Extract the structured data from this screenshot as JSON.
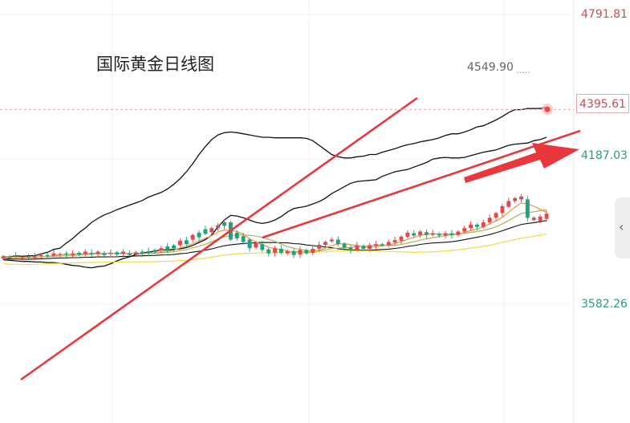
{
  "chart_data": {
    "type": "candlestick",
    "title": "国际黄金日线图",
    "y_axis_labels": [
      {
        "value": 4791.81,
        "text": "4791.81",
        "color": "#d04a52"
      },
      {
        "value": 4187.03,
        "text": "4187.03",
        "color": "#2a9d74"
      },
      {
        "value": 3582.26,
        "text": "3582.26",
        "color": "#2a9d74"
      }
    ],
    "current_price": {
      "value": 4395.61,
      "text": "4395.61"
    },
    "high_marker": {
      "value": 4549.9,
      "text": "4549.90"
    },
    "ylim": [
      3300,
      4830
    ],
    "colors": {
      "up": "#e04a4a",
      "down": "#1fa37a",
      "ma_fast": "#f0913a",
      "ma_mid": "#a9b457",
      "ma_slow": "#f2d64b",
      "band": "#111111",
      "trendline": "#e8383d"
    },
    "candle_shape": [
      [
        -0.03,
        0.01
      ],
      [
        -0.01,
        -0.02
      ],
      [
        0.02,
        0.0
      ],
      [
        -0.02,
        -0.02
      ],
      [
        0.01,
        -0.01
      ],
      [
        -0.02,
        0.01
      ],
      [
        0.02,
        0.03
      ],
      [
        0.03,
        0.02
      ],
      [
        0.02,
        0.06
      ],
      [
        0.04,
        0.05
      ],
      [
        0.06,
        0.04
      ],
      [
        0.03,
        0.06
      ],
      [
        0.07,
        0.04
      ],
      [
        0.05,
        0.09
      ],
      [
        0.07,
        0.05
      ],
      [
        0.05,
        0.09
      ],
      [
        0.06,
        0.03
      ],
      [
        0.05,
        0.07
      ],
      [
        0.08,
        0.04
      ],
      [
        0.05,
        0.09
      ],
      [
        0.06,
        0.03
      ],
      [
        0.04,
        0.08
      ],
      [
        0.09,
        0.05
      ],
      [
        0.1,
        0.07
      ],
      [
        0.12,
        0.08
      ],
      [
        0.11,
        0.15
      ],
      [
        0.18,
        0.12
      ],
      [
        0.2,
        0.15
      ],
      [
        0.2,
        0.28
      ],
      [
        0.29,
        0.22
      ],
      [
        0.3,
        0.38
      ],
      [
        0.42,
        0.34
      ],
      [
        0.48,
        0.4
      ],
      [
        0.43,
        0.5
      ],
      [
        0.5,
        0.55
      ],
      [
        0.6,
        0.54
      ],
      [
        0.6,
        0.3
      ],
      [
        0.42,
        0.32
      ],
      [
        0.36,
        0.26
      ],
      [
        0.3,
        0.15
      ],
      [
        0.16,
        0.24
      ],
      [
        0.22,
        0.12
      ],
      [
        0.13,
        0.06
      ],
      [
        0.07,
        0.15
      ],
      [
        0.14,
        0.07
      ],
      [
        0.06,
        0.1
      ],
      [
        0.1,
        0.03
      ],
      [
        0.04,
        0.12
      ],
      [
        0.12,
        0.06
      ],
      [
        0.07,
        0.14
      ],
      [
        0.14,
        0.21
      ],
      [
        0.21,
        0.26
      ],
      [
        0.27,
        0.3
      ],
      [
        0.3,
        0.22
      ],
      [
        0.23,
        0.16
      ],
      [
        0.16,
        0.12
      ],
      [
        0.12,
        0.2
      ],
      [
        0.19,
        0.14
      ],
      [
        0.14,
        0.2
      ],
      [
        0.19,
        0.22
      ],
      [
        0.22,
        0.2
      ],
      [
        0.2,
        0.26
      ],
      [
        0.25,
        0.29
      ],
      [
        0.28,
        0.35
      ],
      [
        0.35,
        0.42
      ],
      [
        0.41,
        0.37
      ],
      [
        0.38,
        0.44
      ],
      [
        0.43,
        0.38
      ],
      [
        0.38,
        0.41
      ],
      [
        0.4,
        0.37
      ],
      [
        0.37,
        0.41
      ],
      [
        0.41,
        0.38
      ],
      [
        0.38,
        0.44
      ],
      [
        0.44,
        0.5
      ],
      [
        0.5,
        0.56
      ],
      [
        0.56,
        0.52
      ],
      [
        0.52,
        0.6
      ],
      [
        0.6,
        0.68
      ],
      [
        0.68,
        0.76
      ],
      [
        0.76,
        0.88
      ],
      [
        0.87,
        0.97
      ],
      [
        0.97,
        1.02
      ],
      [
        1.0,
        1.05
      ],
      [
        1.0,
        0.68
      ],
      [
        0.64,
        0.68
      ],
      [
        0.62,
        0.7
      ],
      [
        0.66,
        0.75
      ]
    ],
    "band_upper_shape": [
      0,
      0,
      0.02,
      0.01,
      0.02,
      0.02,
      0.05,
      0.08,
      0.13,
      0.15,
      0.24,
      0.32,
      0.42,
      0.5,
      0.6,
      0.67,
      0.73,
      0.77,
      0.82,
      0.86,
      0.9,
      0.94,
      0.98,
      1.04,
      1.08,
      1.12,
      1.18,
      1.26,
      1.36,
      1.48,
      1.62,
      1.78,
      1.92,
      2.04,
      2.12,
      2.16,
      2.17,
      2.16,
      2.14,
      2.12,
      2.1,
      2.08,
      2.08,
      2.07,
      2.07,
      2.07,
      2.07,
      2.07,
      2.06,
      2.02,
      1.94,
      1.86,
      1.78,
      1.74,
      1.72,
      1.72,
      1.74,
      1.75,
      1.78,
      1.78,
      1.82,
      1.85,
      1.88,
      1.92,
      1.95,
      1.97,
      2.0,
      2.02,
      2.04,
      2.07,
      2.11,
      2.14,
      2.14,
      2.17,
      2.21,
      2.26,
      2.28,
      2.33,
      2.38,
      2.44,
      2.51,
      2.56,
      2.56,
      2.58,
      2.58,
      2.58,
      2.6
    ],
    "band_lower_shape": [
      -0.05,
      -0.06,
      -0.07,
      -0.08,
      -0.08,
      -0.09,
      -0.09,
      -0.1,
      -0.1,
      -0.11,
      -0.13,
      -0.15,
      -0.16,
      -0.18,
      -0.19,
      -0.17,
      -0.16,
      -0.12,
      -0.07,
      -0.03,
      0.0,
      0.04,
      0.07,
      0.08,
      0.1,
      0.12,
      0.12,
      0.13,
      0.14,
      0.16,
      0.2,
      0.25,
      0.3,
      0.38,
      0.52,
      0.64,
      0.72,
      0.71,
      0.68,
      0.64,
      0.6,
      0.58,
      0.6,
      0.64,
      0.7,
      0.78,
      0.84,
      0.86,
      0.88,
      0.92,
      0.96,
      1.02,
      1.1,
      1.16,
      1.22,
      1.28,
      1.31,
      1.32,
      1.33,
      1.34,
      1.4,
      1.44,
      1.48,
      1.5,
      1.52,
      1.56,
      1.6,
      1.64,
      1.7,
      1.72,
      1.73,
      1.72,
      1.72,
      1.73,
      1.76,
      1.79,
      1.82,
      1.84,
      1.86,
      1.9,
      1.94,
      1.96,
      1.97,
      1.98,
      2.02,
      2.04,
      2.08
    ]
  }
}
